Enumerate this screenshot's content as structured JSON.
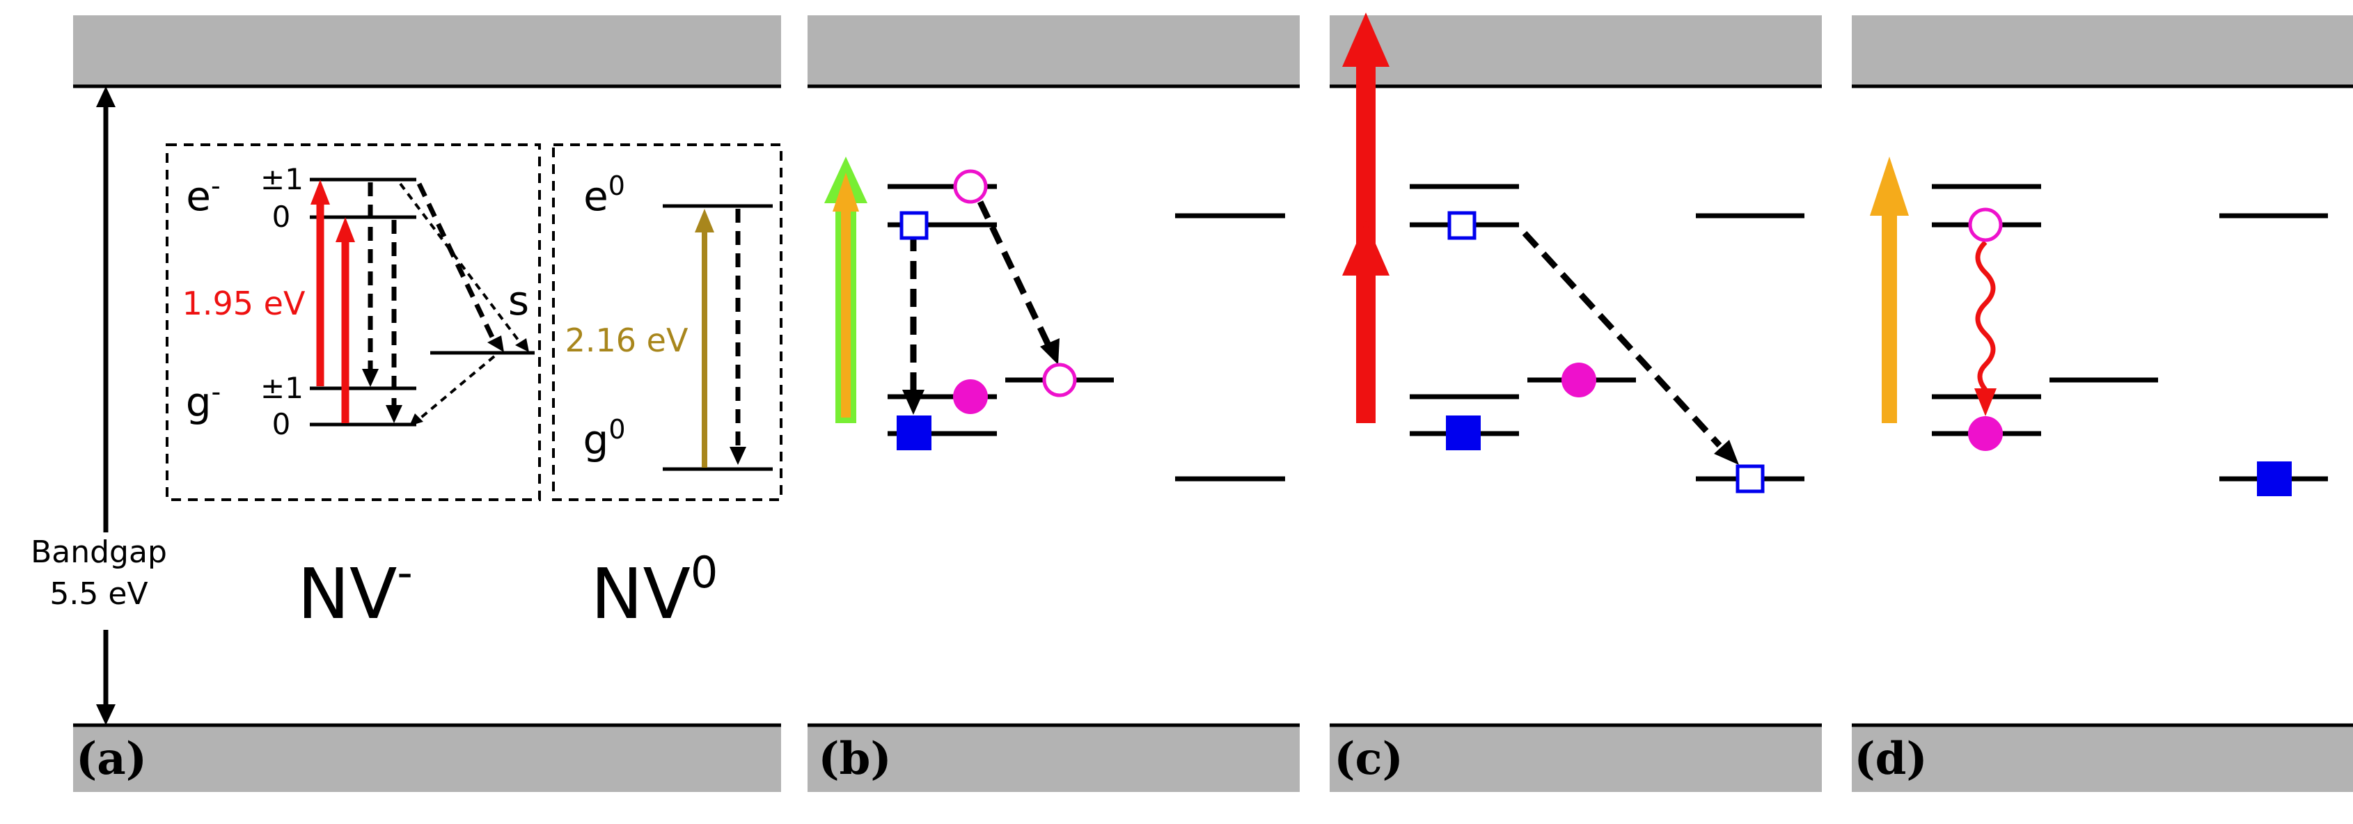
{
  "colors": {
    "band": "#b3b3b3",
    "line": "#000000",
    "red": "#ee1111",
    "olive": "#a8861c",
    "green": "#77ee33",
    "orange": "#f5ab1b",
    "magenta": "#ee11cc",
    "blue": "#0000ee"
  },
  "panel_labels": [
    "(a)",
    "(b)",
    "(c)",
    "(d)"
  ],
  "bandgap": {
    "line1": "Bandgap",
    "line2": "5.5 eV"
  },
  "nv_minus": {
    "label": "NV",
    "label_sup": "-",
    "excited": "e",
    "excited_sup": "-",
    "ground": "g",
    "ground_sup": "-",
    "pm1": "±1",
    "zero": "0",
    "singlet": "s",
    "energy": "1.95 eV"
  },
  "nv_zero": {
    "label": "NV",
    "label_sup": "0",
    "excited": "e",
    "excited_sup": "0",
    "ground": "g",
    "ground_sup": "0",
    "energy": "2.16 eV"
  }
}
